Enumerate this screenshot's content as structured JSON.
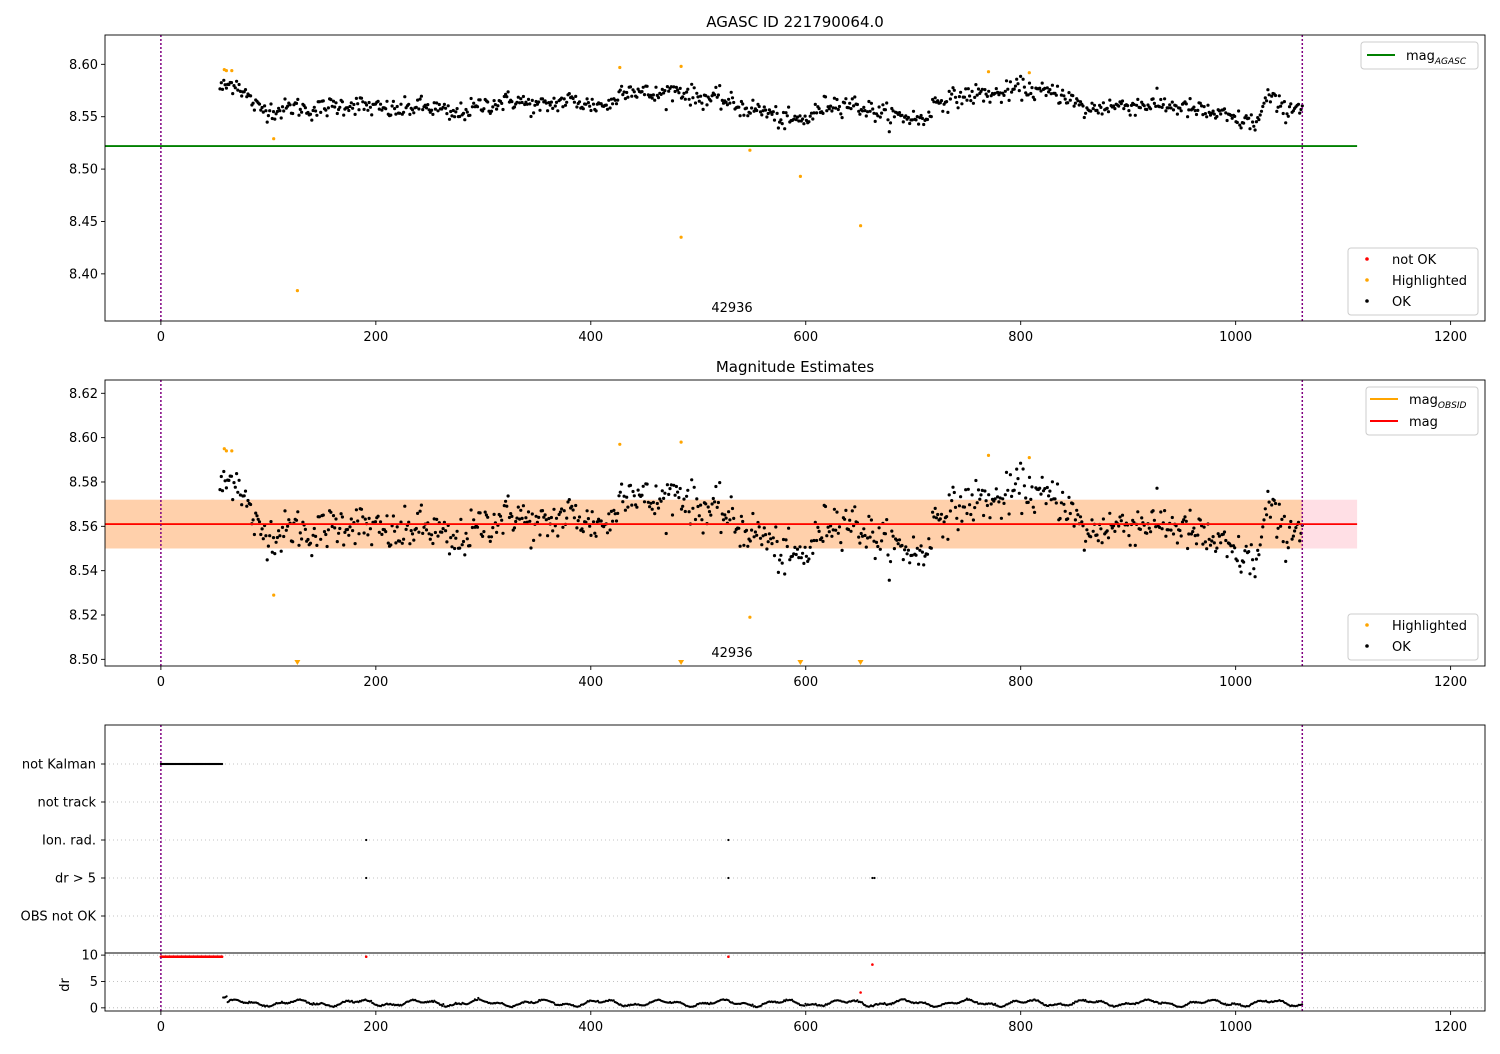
{
  "figure": {
    "title1": "AGASC ID 221790064.0",
    "title2": "Magnitude Estimates",
    "obsid_label": "42936"
  },
  "chart_data": [
    {
      "panel": "agasc",
      "type": "scatter",
      "title": "AGASC ID 221790064.0",
      "xlim": [
        -52,
        1232
      ],
      "ylim": [
        8.355,
        8.628
      ],
      "xticks": [
        "0",
        "200",
        "400",
        "600",
        "800",
        "1000",
        "1200"
      ],
      "yticks": [
        "8.40",
        "8.45",
        "8.50",
        "8.55",
        "8.60"
      ],
      "ytick_values": [
        8.4,
        8.45,
        8.5,
        8.55,
        8.6
      ],
      "xtick_values": [
        0,
        200,
        400,
        600,
        800,
        1000,
        1200
      ],
      "hlines": [
        {
          "name": "mag_AGASC",
          "y": 8.522,
          "x": [
            -52,
            1113
          ],
          "color": "#008000"
        }
      ],
      "vlines": [
        0,
        1062
      ],
      "legend_lines": [
        {
          "label": "mag",
          "sub": "AGASC",
          "color": "#008000"
        }
      ],
      "legend_points": [
        {
          "label": "not OK",
          "color": "#ff0000"
        },
        {
          "label": "Highlighted",
          "color": "#ffa500"
        },
        {
          "label": "OK",
          "color": "#000000"
        }
      ],
      "ok_trend": [
        [
          58,
          8.578
        ],
        [
          70,
          8.583
        ],
        [
          80,
          8.57
        ],
        [
          90,
          8.558
        ],
        [
          110,
          8.556
        ],
        [
          125,
          8.56
        ],
        [
          140,
          8.556
        ],
        [
          160,
          8.56
        ],
        [
          180,
          8.562
        ],
        [
          200,
          8.558
        ],
        [
          220,
          8.556
        ],
        [
          240,
          8.56
        ],
        [
          260,
          8.557
        ],
        [
          270,
          8.551
        ],
        [
          300,
          8.561
        ],
        [
          330,
          8.566
        ],
        [
          350,
          8.559
        ],
        [
          380,
          8.566
        ],
        [
          400,
          8.561
        ],
        [
          420,
          8.562
        ],
        [
          430,
          8.578
        ],
        [
          460,
          8.57
        ],
        [
          480,
          8.576
        ],
        [
          500,
          8.568
        ],
        [
          520,
          8.567
        ],
        [
          540,
          8.559
        ],
        [
          560,
          8.556
        ],
        [
          580,
          8.546
        ],
        [
          600,
          8.547
        ],
        [
          620,
          8.562
        ],
        [
          640,
          8.563
        ],
        [
          660,
          8.556
        ],
        [
          680,
          8.551
        ],
        [
          700,
          8.549
        ],
        [
          710,
          8.546
        ],
        [
          720,
          8.564
        ],
        [
          760,
          8.572
        ],
        [
          780,
          8.571
        ],
        [
          800,
          8.578
        ],
        [
          820,
          8.573
        ],
        [
          840,
          8.572
        ],
        [
          860,
          8.556
        ],
        [
          880,
          8.56
        ],
        [
          900,
          8.561
        ],
        [
          930,
          8.562
        ],
        [
          960,
          8.557
        ],
        [
          980,
          8.553
        ],
        [
          1000,
          8.547
        ],
        [
          1020,
          8.544
        ],
        [
          1030,
          8.57
        ],
        [
          1045,
          8.556
        ],
        [
          1062,
          8.562
        ]
      ],
      "ok_range": [
        55,
        1062
      ],
      "ok_noise": 0.0085,
      "ok_count": 850,
      "highlighted": [
        [
          59,
          8.595
        ],
        [
          61,
          8.594
        ],
        [
          66,
          8.594
        ],
        [
          105,
          8.529
        ],
        [
          127,
          8.384
        ],
        [
          427,
          8.597
        ],
        [
          484,
          8.598
        ],
        [
          484,
          8.435
        ],
        [
          548,
          8.518
        ],
        [
          595,
          8.493
        ],
        [
          651,
          8.446
        ],
        [
          770,
          8.593
        ],
        [
          808,
          8.592
        ]
      ],
      "annotation": {
        "text": "42936",
        "x": 531
      }
    },
    {
      "panel": "magnitude",
      "type": "scatter",
      "title": "Magnitude Estimates",
      "xlim": [
        -52,
        1232
      ],
      "ylim": [
        8.497,
        8.626
      ],
      "xticks": [
        "0",
        "200",
        "400",
        "600",
        "800",
        "1000",
        "1200"
      ],
      "yticks": [
        "8.50",
        "8.52",
        "8.54",
        "8.56",
        "8.58",
        "8.60",
        "8.62"
      ],
      "ytick_values": [
        8.5,
        8.52,
        8.54,
        8.56,
        8.58,
        8.6,
        8.62
      ],
      "xtick_values": [
        0,
        200,
        400,
        600,
        800,
        1000,
        1200
      ],
      "hlines": [
        {
          "name": "mag_OBSID",
          "y": 8.561,
          "x": [
            -52,
            1062
          ],
          "color": "#ffa500"
        },
        {
          "name": "mag",
          "y": 8.561,
          "x": [
            -52,
            1113
          ],
          "color": "#ff0000"
        }
      ],
      "bands": [
        {
          "name": "mag-range",
          "y": [
            8.55,
            8.572
          ],
          "x": [
            -52,
            1113
          ],
          "color": "#ffc0cb",
          "opacity": 0.5
        },
        {
          "name": "obsid-range",
          "y": [
            8.55,
            8.572
          ],
          "x": [
            -52,
            1062
          ],
          "color": "#ffa500",
          "opacity": 0.25
        }
      ],
      "vlines": [
        0,
        1062
      ],
      "legend_lines": [
        {
          "label": "mag",
          "sub": "OBSID",
          "color": "#ffa500"
        },
        {
          "label": "mag",
          "sub": "",
          "color": "#ff0000"
        }
      ],
      "legend_points": [
        {
          "label": "Highlighted",
          "color": "#ffa500"
        },
        {
          "label": "OK",
          "color": "#000000"
        }
      ],
      "highlighted": [
        [
          59,
          8.595
        ],
        [
          61,
          8.594
        ],
        [
          66,
          8.594
        ],
        [
          105,
          8.529
        ],
        [
          427,
          8.597
        ],
        [
          484,
          8.598
        ],
        [
          548,
          8.519
        ],
        [
          770,
          8.592
        ],
        [
          808,
          8.591
        ]
      ],
      "below_range_markers": [
        127,
        484,
        595,
        651
      ],
      "annotation": {
        "text": "42936",
        "x": 531
      }
    },
    {
      "panel": "flags",
      "type": "scatter",
      "xlim": [
        -52,
        1232
      ],
      "categories": [
        "not Kalman",
        "not track",
        "Ion. rad.",
        "dr > 5",
        "OBS not OK"
      ],
      "flag_points": {
        "not Kalman": {
          "range": [
            0,
            57
          ]
        },
        "not track": {
          "points": []
        },
        "Ion. rad.": {
          "points": [
            191,
            528
          ]
        },
        "dr > 5": {
          "points": [
            191,
            528,
            662,
            664
          ]
        },
        "OBS not OK": {
          "points": []
        }
      },
      "vlines": [
        0,
        1062
      ]
    },
    {
      "panel": "dr",
      "type": "scatter",
      "ylabel": "dr",
      "xlim": [
        -52,
        1232
      ],
      "ylim": [
        -0.6,
        10.4
      ],
      "xticks": [
        "0",
        "200",
        "400",
        "600",
        "800",
        "1000",
        "1200"
      ],
      "xtick_values": [
        0,
        200,
        400,
        600,
        800,
        1000,
        1200
      ],
      "yticks": [
        "0",
        "5",
        "10"
      ],
      "ytick_values": [
        0,
        5,
        10
      ],
      "red_points": [
        [
          191,
          9.7
        ],
        [
          528,
          9.7
        ],
        [
          662,
          8.2
        ],
        [
          651,
          2.9
        ]
      ],
      "red_range": [
        0,
        57
      ],
      "red_range_y": 9.7,
      "black_range": [
        58,
        1062
      ],
      "vlines": [
        0,
        1062
      ]
    }
  ]
}
